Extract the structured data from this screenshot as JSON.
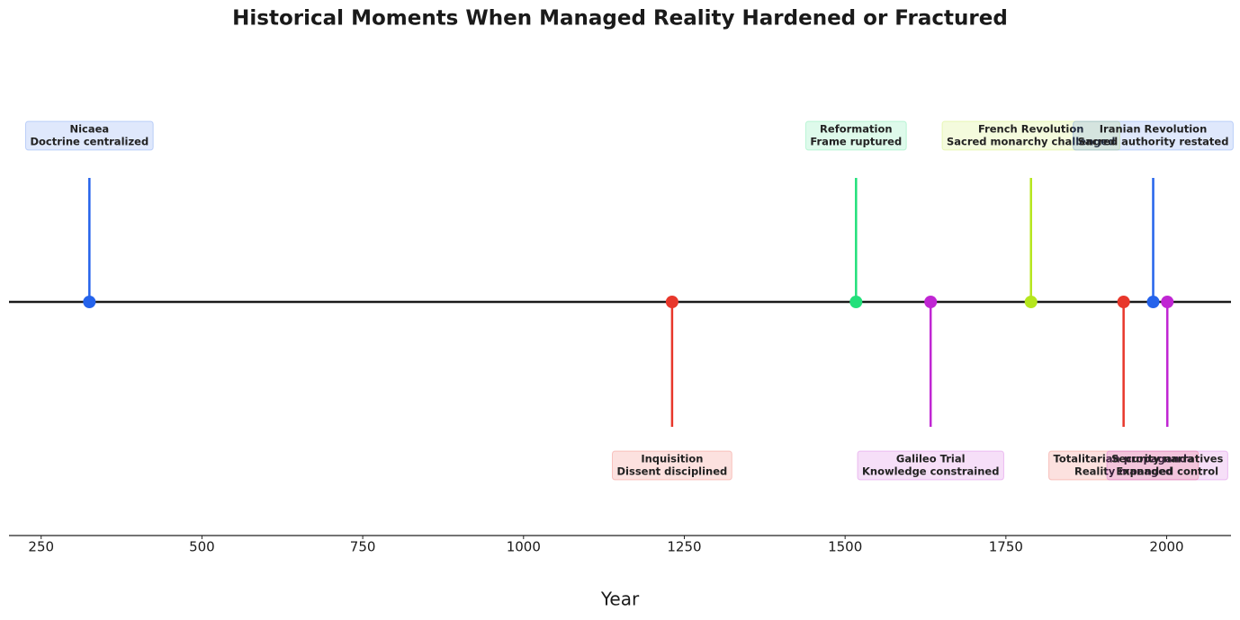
{
  "chart_data": {
    "type": "timeline",
    "title": "Historical Moments When Managed Reality Hardened or Fractured",
    "x_label": "Year",
    "x": [
      325,
      1231,
      1517,
      1633,
      1789,
      1933,
      1979,
      2001
    ],
    "events": [
      "Nicaea",
      "Inquisition",
      "Reformation",
      "Galileo Trial",
      "French Revolution",
      "Totalitarian propaganda",
      "Iranian Revolution",
      "Security narratives"
    ],
    "descriptions": [
      "Doctrine centralized",
      "Dissent disciplined",
      "Frame ruptured",
      "Knowledge constrained",
      "Sacred monarchy challenged",
      "Reality managed",
      "Sacred authority restated",
      "Expanded control"
    ],
    "colors": [
      "#2563eb",
      "#e8372b",
      "#22e07a",
      "#c026d3",
      "#b5e61d",
      "#e8372b",
      "#2563eb",
      "#c026d3"
    ],
    "xlim": [
      200,
      2100
    ],
    "xticks": [
      250,
      500,
      750,
      1000,
      1250,
      1500,
      1750,
      2000
    ]
  }
}
